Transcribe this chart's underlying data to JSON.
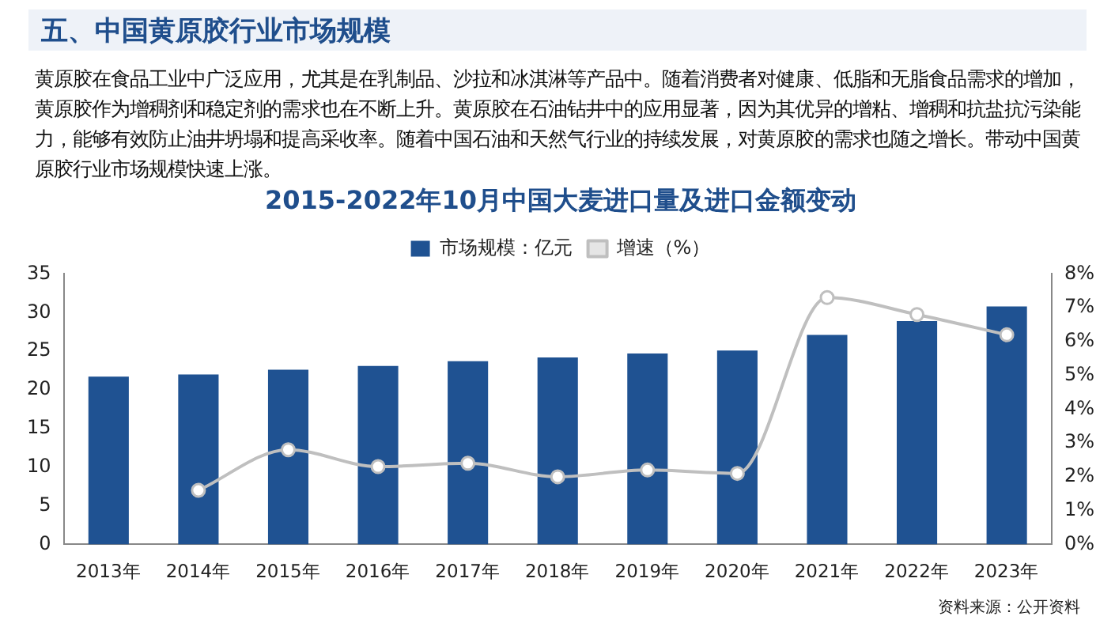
{
  "chart_data": {
    "type": "bar",
    "title": "2015-2022年10月中国大麦进口量及进口金额变动",
    "annotations": [
      "五、中国黄原胶行业市场规模",
      "黄原胶在食品工业中广泛应用，尤其是在乳制品、沙拉和冰淇淋等产品中。随着消费者对健康、低脂和无脂食品需求的增加，黄原胶作为增稠剂和稳定剂的需求也在不断上升。黄原胶在石油钻井中的应用显著，因为其优异的增粘、增稠和抗盐抗污染能力，能够有效防止油井坍塌和提高采收率。随着中国石油和天然气行业的持续发展，对黄原胶的需求也随之增长。带动中国黄原胶行业市场规模快速上涨。",
      "资料来源：公开资料"
    ],
    "categories": [
      "2013年",
      "2014年",
      "2015年",
      "2016年",
      "2017年",
      "2018年",
      "2019年",
      "2020年",
      "2021年",
      "2022年",
      "2023年"
    ],
    "series": [
      {
        "name": "市场规模：亿元",
        "color": "#1f5292",
        "values": [
          21.7,
          22.0,
          22.6,
          23.1,
          23.7,
          24.2,
          24.7,
          25.1,
          27.1,
          28.9,
          30.8
        ]
      },
      {
        "name": "增速（%）",
        "type": "line",
        "axis": "y2",
        "color": "#bfbfbf",
        "marker": "circle",
        "values": [
          null,
          1.6,
          2.8,
          2.3,
          2.4,
          2.0,
          2.2,
          2.1,
          7.3,
          6.8,
          6.2
        ]
      }
    ],
    "ylim": [
      0,
      35
    ],
    "yticks": [
      0,
      5,
      10,
      15,
      20,
      25,
      30,
      35
    ],
    "y2lim": [
      0,
      8
    ],
    "y2ticks": [
      {
        "value": 0,
        "label": "0%"
      },
      {
        "value": 1,
        "label": "1%"
      },
      {
        "value": 2,
        "label": "2%"
      },
      {
        "value": 3,
        "label": "3%"
      },
      {
        "value": 4,
        "label": "4%"
      },
      {
        "value": 5,
        "label": "5%"
      },
      {
        "value": 6,
        "label": "6%"
      },
      {
        "value": 7,
        "label": "7%"
      },
      {
        "value": 8,
        "label": "8%"
      }
    ],
    "grid": false,
    "legend": "top"
  }
}
